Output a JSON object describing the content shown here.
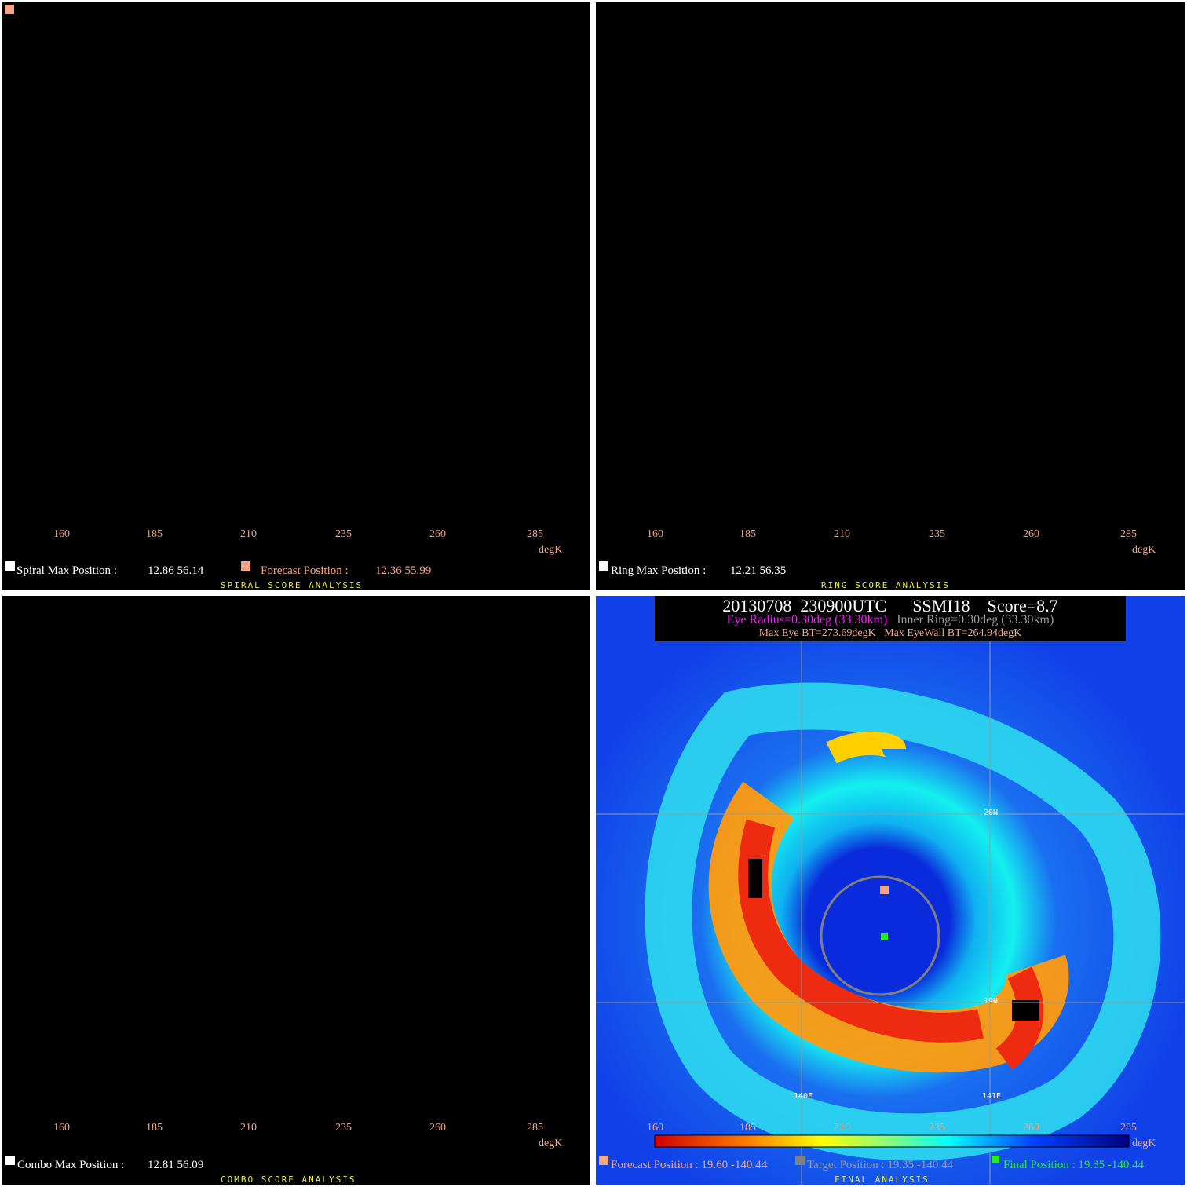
{
  "colorbar": {
    "ticks": [
      "160",
      "185",
      "210",
      "235",
      "260",
      "285"
    ],
    "unit": "degK"
  },
  "spiral": {
    "title": "SPIRAL SCORE ANALYSIS",
    "max_label": "Spiral Max Position :",
    "max_value": "12.86 56.14",
    "forecast_label": "Forecast Position :",
    "forecast_value": "12.36 55.99"
  },
  "ring": {
    "title": "RING SCORE ANALYSIS",
    "max_label": "Ring Max Position :",
    "max_value": "12.21 56.35"
  },
  "combo": {
    "title": "COMBO SCORE ANALYSIS",
    "max_label": "Combo Max Position :",
    "max_value": "12.81 56.09"
  },
  "final": {
    "title": "FINAL ANALYSIS",
    "date": "20130708",
    "time": "230900UTC",
    "sensor": "SSMI18",
    "score": "Score=8.7",
    "eye_radius": "Eye Radius=0.30deg (33.30km)",
    "inner_ring": "Inner Ring=0.30deg (33.30km)",
    "max_eye_bt": "Max Eye BT=273.69degK",
    "max_eyewall_bt": "Max EyeWall BT=264.94degK",
    "lat_labels": [
      "20N",
      "19N"
    ],
    "lon_labels": [
      "140E",
      "141E"
    ],
    "forecast_position": "Forecast Position : 19.60 -140.44",
    "target_position": "Target Position : 19.35 -140.44",
    "final_position": "Final Position : 19.35 -140.44"
  },
  "colors": {
    "forecast_marker": "#f4a582",
    "target_marker": "#808080",
    "final_marker": "#22ee22",
    "ring_circle": "#808080",
    "title_text": "#e8e84a"
  }
}
